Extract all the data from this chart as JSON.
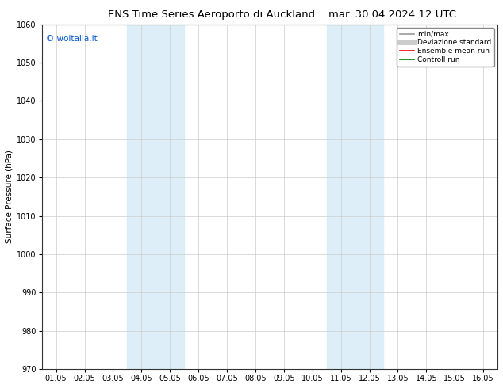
{
  "title_left": "ENS Time Series Aeroporto di Auckland",
  "title_right": "mar. 30.04.2024 12 UTC",
  "ylabel": "Surface Pressure (hPa)",
  "ylim": [
    970,
    1060
  ],
  "yticks": [
    970,
    980,
    990,
    1000,
    1010,
    1020,
    1030,
    1040,
    1050,
    1060
  ],
  "xtick_labels": [
    "01.05",
    "02.05",
    "03.05",
    "04.05",
    "05.05",
    "06.05",
    "07.05",
    "08.05",
    "09.05",
    "10.05",
    "11.05",
    "12.05",
    "13.05",
    "14.05",
    "15.05",
    "16.05"
  ],
  "shaded_regions": [
    {
      "xstart": 3,
      "xend": 5,
      "color": "#ddeef8"
    },
    {
      "xstart": 10,
      "xend": 12,
      "color": "#ddeef8"
    }
  ],
  "watermark_text": "© woitalia.it",
  "watermark_color": "#0055cc",
  "legend_entries": [
    {
      "label": "min/max",
      "color": "#999999",
      "lw": 1.2,
      "style": "solid"
    },
    {
      "label": "Deviazione standard",
      "color": "#cccccc",
      "lw": 5,
      "style": "solid"
    },
    {
      "label": "Ensemble mean run",
      "color": "#ff0000",
      "lw": 1.2,
      "style": "solid"
    },
    {
      "label": "Controll run",
      "color": "#008000",
      "lw": 1.2,
      "style": "solid"
    }
  ],
  "background_color": "#ffffff",
  "grid_color": "#cccccc",
  "title_fontsize": 9.5,
  "axis_fontsize": 7.5,
  "tick_fontsize": 7,
  "legend_fontsize": 6.5,
  "watermark_fontsize": 7.5
}
